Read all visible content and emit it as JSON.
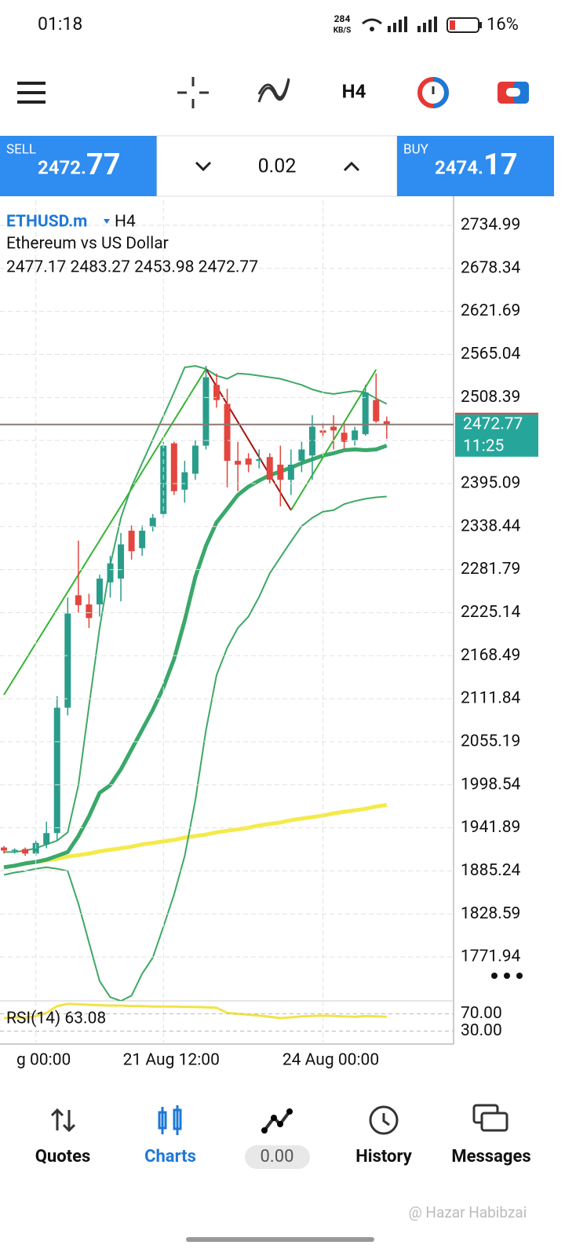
{
  "status_bar": {
    "time": "01:18",
    "speed": "284",
    "speed_unit": "KB/S",
    "battery": "16%"
  },
  "toolbar": {
    "timeframe": "H4"
  },
  "trade_panel": {
    "sell_label": "SELL",
    "sell_price_main": "2472.",
    "sell_price_pips": "77",
    "lot": "0.02",
    "buy_label": "BUY",
    "buy_price_main": "2474.",
    "buy_price_pips": "17"
  },
  "chart_data": {
    "type": "candlestick",
    "symbol": "ETHUSD.m",
    "timeframe": "H4",
    "description": "Ethereum vs US Dollar",
    "ohlc_text": "2477.17 2483.27 2453.98 2472.77",
    "open": [
      1916,
      1912,
      1914,
      1908,
      1920,
      1935,
      2100,
      2248,
      2236,
      2236,
      2265,
      2270,
      2333,
      2310,
      2338,
      2355,
      2448,
      2387,
      2408,
      2445,
      2525,
      2500,
      2425,
      2428,
      2425,
      2430,
      2420,
      2400,
      2425,
      2432,
      2465,
      2470,
      2462,
      2452,
      2460,
      2505,
      2477.17
    ],
    "high": [
      1918,
      1915,
      1916,
      1925,
      1950,
      2115,
      2245,
      2320,
      2250,
      2275,
      2300,
      2330,
      2340,
      2340,
      2355,
      2450,
      2450,
      2425,
      2452,
      2550,
      2540,
      2520,
      2450,
      2435,
      2440,
      2435,
      2445,
      2440,
      2450,
      2485,
      2475,
      2485,
      2475,
      2470,
      2525,
      2540,
      2483.27
    ],
    "low": [
      1908,
      1908,
      1905,
      1905,
      1915,
      1925,
      2090,
      2225,
      2205,
      2220,
      2245,
      2240,
      2295,
      2300,
      2332,
      2350,
      2380,
      2370,
      2400,
      2440,
      2495,
      2390,
      2385,
      2410,
      2415,
      2395,
      2365,
      2380,
      2410,
      2400,
      2455,
      2440,
      2440,
      2445,
      2458,
      2475,
      2453.98
    ],
    "close": [
      1912,
      1913,
      1908,
      1922,
      1935,
      2100,
      2224,
      2235,
      2218,
      2270,
      2290,
      2315,
      2306,
      2333,
      2350,
      2445,
      2385,
      2410,
      2445,
      2535,
      2505,
      2425,
      2420,
      2420,
      2427,
      2400,
      2400,
      2420,
      2440,
      2470,
      2462,
      2465,
      2450,
      2465,
      2515,
      2477,
      2472.77
    ],
    "up_color": "#2a9d8a",
    "down_color": "#e2463f",
    "bollinger": {
      "upper": {
        "color": "#3fa866",
        "values": [
          1910,
          1910,
          1912,
          1915,
          1920,
          1925,
          1936,
          1998,
          2102,
          2205,
          2288,
          2350,
          2391,
          2422,
          2453,
          2484,
          2515,
          2548,
          2550,
          2546,
          2537,
          2533,
          2540,
          2539,
          2537,
          2535,
          2533,
          2529,
          2525,
          2519,
          2515,
          2513,
          2515,
          2517,
          2515,
          2507,
          2500
        ]
      },
      "middle": {
        "color": "#3aa86a",
        "values": [
          1890,
          1892,
          1895,
          1897,
          1900,
          1905,
          1910,
          1931,
          1957,
          1988,
          1998,
          2019,
          2045,
          2071,
          2097,
          2127,
          2164,
          2215,
          2272,
          2313,
          2344,
          2362,
          2380,
          2391,
          2399,
          2406,
          2411,
          2416,
          2422,
          2427,
          2432,
          2435,
          2439,
          2440,
          2439,
          2440,
          2445
        ]
      },
      "lower": {
        "color": "#3fa866",
        "values": [
          1880,
          1883,
          1885,
          1888,
          1890,
          1888,
          1885,
          1842,
          1791,
          1740,
          1719,
          1714,
          1721,
          1750,
          1771,
          1812,
          1854,
          1905,
          1978,
          2070,
          2143,
          2179,
          2205,
          2220,
          2246,
          2277,
          2298,
          2319,
          2339,
          2350,
          2358,
          2360,
          2368,
          2372,
          2375,
          2377,
          2378
        ]
      }
    },
    "moving_average": {
      "color": "#f4ea4a",
      "values": [
        1890,
        1892,
        1895,
        1897,
        1899,
        1901,
        1904,
        1906,
        1908,
        1911,
        1913,
        1915,
        1917,
        1920,
        1922,
        1924,
        1926,
        1929,
        1931,
        1933,
        1936,
        1938,
        1940,
        1942,
        1945,
        1947,
        1949,
        1952,
        1954,
        1956,
        1958,
        1961,
        1963,
        1965,
        1967,
        1970,
        1972
      ]
    },
    "zigzag": {
      "up_color": "#35b535",
      "down_color": "#a3140f",
      "x": [
        0,
        19,
        27,
        35
      ],
      "values": [
        2117,
        2546,
        2360,
        2545
      ]
    },
    "price_line": 2472.77,
    "timer": "11:25",
    "ylim": [
      1714.1,
      2768.1
    ],
    "yticks": [
      2734.99,
      2678.34,
      2621.69,
      2565.04,
      2508.39,
      2451.74,
      2395.09,
      2338.44,
      2281.79,
      2225.14,
      2168.49,
      2111.84,
      2055.19,
      1998.54,
      1941.89,
      1885.24,
      1828.59,
      1771.94
    ],
    "xticks": [
      {
        "value": 3,
        "label": "g 00:00"
      },
      {
        "value": 15,
        "label": "21 Aug 12:00"
      },
      {
        "value": 30,
        "label": "24 Aug 00:00"
      }
    ],
    "rsi": {
      "label": "RSI(14) 63.08",
      "color": "#f1e34a",
      "ylim": [
        0,
        100
      ],
      "yticks": [
        {
          "value": 70,
          "label": "70.00"
        },
        {
          "value": 30,
          "label": "30.00"
        }
      ],
      "values": [
        60,
        62,
        61,
        65,
        72,
        88,
        93,
        92,
        91,
        90,
        89,
        89,
        88,
        88,
        87,
        87,
        87,
        86,
        86,
        85,
        84,
        72,
        70,
        68,
        66,
        63,
        60,
        62,
        64,
        65,
        66,
        65,
        64,
        63,
        65,
        64,
        63.08
      ]
    }
  },
  "bottom_nav": {
    "quotes": "Quotes",
    "charts": "Charts",
    "trade": "0.00",
    "history": "History",
    "messages": "Messages"
  },
  "watermark": "@ Hazar Habibzai"
}
